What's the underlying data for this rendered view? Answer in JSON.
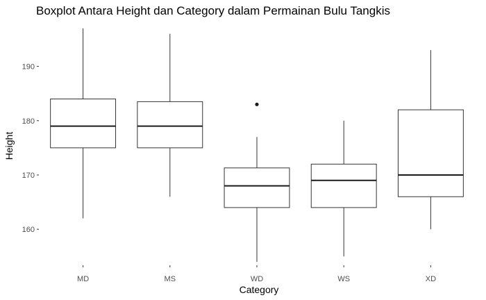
{
  "chart_data": {
    "type": "boxplot",
    "title": "Boxplot Antara Height dan Category dalam Permainan Bulu Tangkis",
    "xlabel": "Category",
    "ylabel": "Height",
    "ylim": [
      153.5,
      198
    ],
    "yticks": [
      160,
      170,
      180,
      190
    ],
    "grid": false,
    "categories": [
      "MD",
      "MS",
      "WD",
      "WS",
      "XD"
    ],
    "boxes": [
      {
        "category": "MD",
        "whisker_low": 162,
        "q1": 175,
        "median": 179,
        "q3": 184,
        "whisker_high": 197,
        "outliers": []
      },
      {
        "category": "MS",
        "whisker_low": 166,
        "q1": 175,
        "median": 179,
        "q3": 183.5,
        "whisker_high": 196,
        "outliers": []
      },
      {
        "category": "WD",
        "whisker_low": 154,
        "q1": 164,
        "median": 168,
        "q3": 171.3,
        "whisker_high": 177,
        "outliers": [
          183
        ]
      },
      {
        "category": "WS",
        "whisker_low": 155,
        "q1": 164,
        "median": 169,
        "q3": 172,
        "whisker_high": 180,
        "outliers": []
      },
      {
        "category": "XD",
        "whisker_low": 160,
        "q1": 166,
        "median": 170,
        "q3": 182,
        "whisker_high": 193,
        "outliers": []
      }
    ]
  }
}
